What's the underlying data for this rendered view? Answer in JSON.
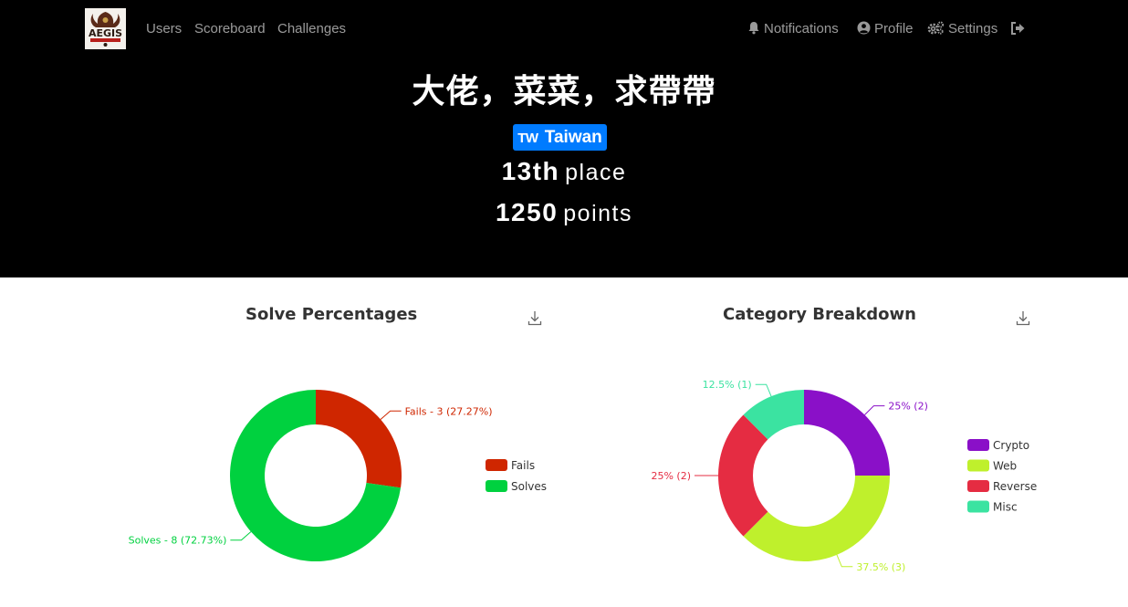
{
  "nav": {
    "links": [
      {
        "label": "Users"
      },
      {
        "label": "Scoreboard"
      },
      {
        "label": "Challenges"
      }
    ],
    "right": [
      {
        "label": "Notifications",
        "icon": "bell-icon"
      },
      {
        "label": "Profile",
        "icon": "user-circle-icon"
      },
      {
        "label": "Settings",
        "icon": "cogs-icon"
      }
    ],
    "logout_icon": "sign-out-icon",
    "logo_text": "AEGIS"
  },
  "team": {
    "name": "大佬，菜菜，求帶帶",
    "country_code": "TW",
    "country": "Taiwan",
    "place_num": "13th",
    "place_unit": "place",
    "points_num": "1250",
    "points_unit": "points"
  },
  "colors": {
    "fails": "#cf2600",
    "solves": "#00d13f",
    "crypto": "#8a10c8",
    "web": "#bff02c",
    "reverse": "#e52c42",
    "misc": "#3be3a1",
    "badge": "#007bff"
  },
  "chart_data": [
    {
      "type": "pie",
      "title": "Solve Percentages",
      "slices": [
        {
          "name": "Fails",
          "value": 3,
          "label": "Fails - 3 (27.27%)"
        },
        {
          "name": "Solves",
          "value": 8,
          "label": "Solves - 8 (72.73%)"
        }
      ],
      "legend": [
        "Fails",
        "Solves"
      ],
      "legend_position": "right"
    },
    {
      "type": "pie",
      "title": "Category Breakdown",
      "slices": [
        {
          "name": "Crypto",
          "value": 2,
          "label": "25% (2)"
        },
        {
          "name": "Web",
          "value": 3,
          "label": "37.5% (3)"
        },
        {
          "name": "Reverse",
          "value": 2,
          "label": "25% (2)"
        },
        {
          "name": "Misc",
          "value": 1,
          "label": "12.5% (1)"
        }
      ],
      "legend": [
        "Crypto",
        "Web",
        "Reverse",
        "Misc"
      ],
      "legend_position": "right"
    }
  ]
}
